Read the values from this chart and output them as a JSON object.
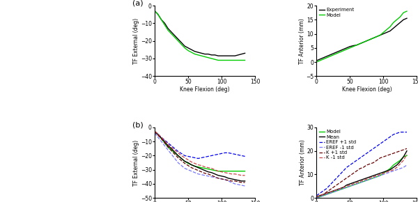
{
  "knee_flexion": [
    0,
    5,
    10,
    15,
    20,
    25,
    30,
    35,
    40,
    45,
    50,
    55,
    60,
    65,
    70,
    75,
    80,
    85,
    90,
    95,
    100,
    105,
    110,
    115,
    120,
    125,
    130,
    135
  ],
  "a_ext_exp": [
    -3,
    -5,
    -8,
    -10,
    -13,
    -15,
    -17,
    -19,
    -21,
    -23,
    -24,
    -25,
    -26,
    -26.5,
    -27,
    -27.5,
    -27.5,
    -28,
    -28,
    -28.5,
    -28.5,
    -28.5,
    -28.5,
    -28.5,
    -28.5,
    -28,
    -27.5,
    -27
  ],
  "a_ext_model": [
    -3,
    -5,
    -8,
    -11,
    -14,
    -16,
    -18,
    -20,
    -22,
    -24,
    -25.5,
    -26.5,
    -27.5,
    -28,
    -28.5,
    -29,
    -29.5,
    -30,
    -30.5,
    -31,
    -31,
    -31,
    -31,
    -31,
    -31,
    -31,
    -31,
    -31
  ],
  "a_ant_exp": [
    0.5,
    1,
    1.5,
    2,
    2.5,
    3,
    3.5,
    4,
    4.5,
    5,
    5.5,
    5.8,
    6,
    6.5,
    7,
    7.5,
    8,
    8.5,
    9,
    9.5,
    10,
    10.5,
    11,
    12,
    13,
    14,
    15,
    15.5
  ],
  "a_ant_model": [
    0,
    0.5,
    1,
    1.5,
    2,
    2.5,
    3,
    3.5,
    4,
    4.5,
    5,
    5.5,
    6,
    6.5,
    7,
    7.5,
    8,
    8.5,
    9,
    9.5,
    10.5,
    11.5,
    12.5,
    14,
    15,
    16,
    17.5,
    18
  ],
  "b_ext_model": [
    -3,
    -5,
    -8,
    -11,
    -14,
    -16,
    -18,
    -20,
    -22,
    -24,
    -25.5,
    -26.5,
    -27.5,
    -28,
    -28.5,
    -29,
    -29.5,
    -30,
    -30.5,
    -31,
    -31,
    -31,
    -31,
    -31,
    -31,
    -31,
    -31,
    -31
  ],
  "b_ext_mean": [
    -3,
    -5,
    -7.5,
    -10,
    -13,
    -15,
    -17.5,
    -20,
    -22,
    -24,
    -25,
    -26.5,
    -27.5,
    -28.5,
    -29.5,
    -30.5,
    -31.5,
    -32,
    -33,
    -34,
    -34.5,
    -35,
    -36,
    -36.5,
    -37,
    -37.5,
    -38,
    -38
  ],
  "b_ext_eref_p1": [
    -3,
    -5,
    -7,
    -9,
    -11,
    -13,
    -15,
    -17,
    -18.5,
    -20,
    -20.5,
    -21,
    -21.5,
    -22,
    -21.5,
    -21,
    -20.5,
    -20,
    -19.5,
    -19,
    -18.5,
    -18,
    -18,
    -18.5,
    -19,
    -19.5,
    -20,
    -20.5
  ],
  "b_ext_eref_m1": [
    -4,
    -7,
    -10,
    -13,
    -16,
    -19,
    -22,
    -25,
    -27,
    -29,
    -30,
    -31,
    -32,
    -33,
    -33.5,
    -34,
    -34.5,
    -35,
    -35.5,
    -36,
    -36.5,
    -37,
    -38,
    -39,
    -40,
    -40.5,
    -41,
    -41.5
  ],
  "b_ext_k_p1": [
    -3,
    -5.5,
    -8,
    -11,
    -14,
    -16.5,
    -19,
    -21.5,
    -23.5,
    -25.5,
    -27,
    -28.5,
    -29.5,
    -30.5,
    -31.5,
    -32.5,
    -33,
    -34,
    -35,
    -36,
    -36.5,
    -37,
    -37.5,
    -38,
    -38,
    -38.5,
    -39,
    -39
  ],
  "b_ext_k_m1": [
    -2.5,
    -4.5,
    -7,
    -9.5,
    -12,
    -14,
    -16,
    -18,
    -20,
    -21.5,
    -23,
    -24.5,
    -25.5,
    -26.5,
    -27,
    -28,
    -28.5,
    -29,
    -30,
    -31,
    -31.5,
    -32,
    -32.5,
    -33,
    -33,
    -33.5,
    -34,
    -34
  ],
  "b_ant_model": [
    0,
    0.5,
    1,
    1.5,
    2,
    2.5,
    3,
    3.5,
    4,
    4.5,
    5,
    5.5,
    6,
    6.5,
    7,
    7.5,
    8,
    8.5,
    9,
    9.5,
    10.5,
    11.5,
    12.5,
    14,
    15,
    16,
    17.5,
    18
  ],
  "b_ant_mean": [
    0.5,
    1,
    1.5,
    2,
    2.5,
    3,
    3.5,
    4,
    4.5,
    5.5,
    6,
    6.5,
    7,
    7.5,
    8,
    8.5,
    9,
    9.5,
    10,
    10.5,
    11,
    11.5,
    12,
    13,
    14,
    15.5,
    17.5,
    20
  ],
  "b_ant_eref_p1": [
    1,
    2,
    3,
    4,
    5.5,
    7,
    8.5,
    10,
    11.5,
    13,
    14,
    15,
    16,
    17,
    18,
    19,
    20,
    21,
    22,
    23,
    24,
    25,
    26,
    27,
    27.5,
    28,
    28,
    28
  ],
  "b_ant_eref_m1": [
    0,
    0.5,
    1,
    1.5,
    2,
    2.5,
    3,
    3.5,
    4,
    4.5,
    5,
    5.5,
    6,
    6.5,
    7,
    7.5,
    8,
    8.5,
    9,
    9.5,
    10,
    10.5,
    11,
    11.5,
    12,
    12.5,
    13,
    14
  ],
  "b_ant_k_p1": [
    0.5,
    1,
    1.5,
    2.5,
    3.5,
    4.5,
    5.5,
    6.5,
    7.5,
    8.5,
    9.5,
    10.5,
    11.5,
    12.5,
    13,
    14,
    14.5,
    15,
    16,
    17,
    17.5,
    18,
    18.5,
    19,
    19.5,
    20,
    20.5,
    21
  ],
  "b_ant_k_m1": [
    0.5,
    1,
    1.5,
    2,
    2.5,
    3,
    3.5,
    4,
    4.5,
    5,
    5.5,
    6,
    6.5,
    7,
    7.5,
    8,
    8.5,
    9,
    9.5,
    10,
    10.5,
    11,
    11.5,
    12,
    13,
    14.5,
    16,
    18.5
  ],
  "color_exp": "#000000",
  "color_model": "#00cc00",
  "color_mean": "#000000",
  "color_eref_p1": "#0000ee",
  "color_eref_m1": "#7777ff",
  "color_k_p1": "#660000",
  "color_k_m1": "#cc4444",
  "xlabel": "Knee Flexion (deg)",
  "ylabel_ext": "TF External (deg)",
  "ylabel_ant": "TF Anterior (mm)",
  "label_a": "(a)",
  "label_b": "(b)",
  "xlim": [
    0,
    150
  ],
  "a_ext_ylim": [
    -40,
    0
  ],
  "a_ant_ylim": [
    -5,
    20
  ],
  "b_ext_ylim": [
    -50,
    0
  ],
  "b_ant_ylim": [
    0,
    30
  ],
  "xticks": [
    0,
    50,
    100,
    150
  ],
  "a_ext_yticks": [
    0,
    -10,
    -20,
    -30,
    -40
  ],
  "a_ant_yticks": [
    -5,
    0,
    5,
    10,
    15,
    20
  ],
  "b_ext_yticks": [
    0,
    -10,
    -20,
    -30,
    -40,
    -50
  ],
  "b_ant_yticks": [
    0,
    10,
    20,
    30
  ]
}
